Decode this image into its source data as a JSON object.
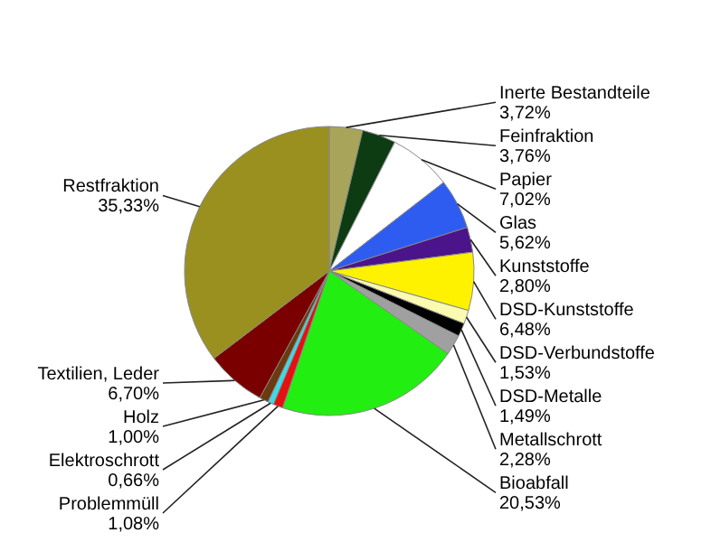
{
  "chart_data": {
    "type": "pie",
    "categories": [
      "Inerte Bestandteile",
      "Feinfraktion",
      "Papier",
      "Glas",
      "Kunststoffe",
      "DSD-Kunststoffe",
      "DSD-Verbundstoffe",
      "DSD-Metalle",
      "Metallschrott",
      "Bioabfall",
      "Problemmüll",
      "Elektroschrott",
      "Holz",
      "Textilien, Leder",
      "Restfraktion"
    ],
    "values": [
      3.72,
      3.76,
      7.02,
      5.62,
      2.8,
      6.48,
      1.53,
      1.49,
      2.28,
      20.53,
      1.08,
      0.66,
      1.0,
      6.7,
      35.33
    ],
    "value_labels": [
      "3,72%",
      "3,76%",
      "7,02%",
      "5,62%",
      "2,80%",
      "6,48%",
      "1,53%",
      "1,49%",
      "2,28%",
      "20,53%",
      "1,08%",
      "0,66%",
      "1,00%",
      "6,70%",
      "35,33%"
    ],
    "colors": [
      "#a8a55a",
      "#0d3b12",
      "#ffffff",
      "#2f5cf0",
      "#4b148a",
      "#fff200",
      "#fafab0",
      "#000000",
      "#a0a0a0",
      "#22ee11",
      "#e51010",
      "#40d8e8",
      "#6b3a0e",
      "#7a0000",
      "#9a9020"
    ]
  }
}
